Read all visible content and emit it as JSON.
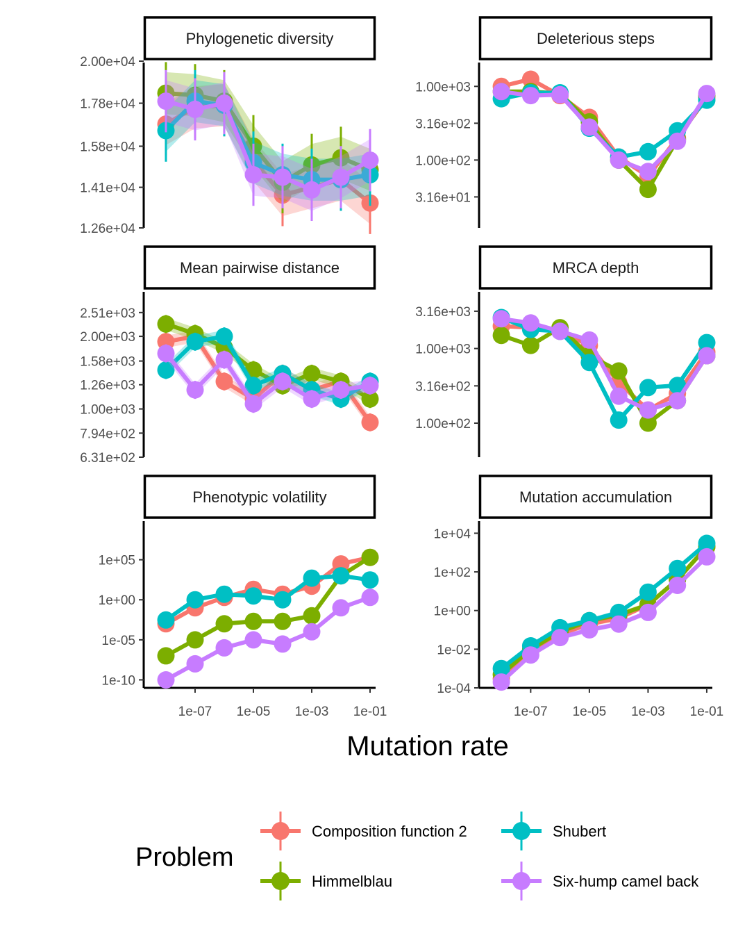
{
  "colors": {
    "Composition function 2": "#F8766D",
    "Himmelblau": "#7CAE00",
    "Shubert": "#00BFC4",
    "Six-hump camel back": "#C77CFF"
  },
  "x_axis_title": "Mutation rate",
  "legend": {
    "title": "Problem",
    "entries": [
      "Composition function 2",
      "Shubert",
      "Himmelblau",
      "Six-hump camel back"
    ]
  },
  "chart_data": [
    {
      "type": "line",
      "title": "Phylogenetic diversity",
      "xlabel": "Mutation rate",
      "x_scale": "log10",
      "y_scale": "log10",
      "x": [
        1e-08,
        1e-07,
        1e-06,
        1e-05,
        0.0001,
        0.001,
        0.01,
        0.1
      ],
      "xticks": [
        "1e-07",
        "1e-05",
        "1e-03",
        "1e-01"
      ],
      "yticks": [
        "1.26e+04",
        "1.41e+04",
        "1.58e+04",
        "1.78e+04",
        "2.00e+04"
      ],
      "ylim": [
        12600,
        20000
      ],
      "series": [
        {
          "name": "Composition function 2",
          "values": [
            16800,
            17600,
            17700,
            15200,
            13800,
            14100,
            14400,
            13500
          ]
        },
        {
          "name": "Himmelblau",
          "values": [
            18300,
            18200,
            17900,
            15800,
            14300,
            15000,
            15300,
            14800
          ]
        },
        {
          "name": "Shubert",
          "values": [
            16500,
            17900,
            17700,
            15100,
            14600,
            14400,
            14400,
            14600
          ]
        },
        {
          "name": "Six-hump camel back",
          "values": [
            17900,
            17500,
            17800,
            14600,
            14500,
            14000,
            14500,
            15200
          ]
        }
      ]
    },
    {
      "type": "line",
      "title": "Deleterious steps",
      "xlabel": "Mutation rate",
      "x_scale": "log10",
      "y_scale": "log10",
      "x": [
        1e-08,
        1e-07,
        1e-06,
        1e-05,
        0.0001,
        0.001,
        0.01,
        0.1
      ],
      "xticks": [
        "1e-07",
        "1e-05",
        "1e-03",
        "1e-01"
      ],
      "yticks": [
        "3.16e+01",
        "1.00e+02",
        "3.16e+02",
        "1.00e+03"
      ],
      "ylim": [
        12,
        2200
      ],
      "series": [
        {
          "name": "Composition function 2",
          "values": [
            1000,
            1250,
            750,
            380,
            110,
            60,
            200,
            700
          ]
        },
        {
          "name": "Himmelblau",
          "values": [
            850,
            850,
            800,
            330,
            100,
            40,
            190,
            750
          ]
        },
        {
          "name": "Shubert",
          "values": [
            680,
            820,
            820,
            270,
            110,
            130,
            250,
            650
          ]
        },
        {
          "name": "Six-hump camel back",
          "values": [
            850,
            750,
            770,
            280,
            100,
            70,
            180,
            800
          ]
        }
      ]
    },
    {
      "type": "line",
      "title": "Mean pairwise distance",
      "xlabel": "Mutation rate",
      "x_scale": "log10",
      "y_scale": "log10",
      "x": [
        1e-08,
        1e-07,
        1e-06,
        1e-05,
        0.0001,
        0.001,
        0.01,
        0.1
      ],
      "xticks": [
        "1e-07",
        "1e-05",
        "1e-03",
        "1e-01"
      ],
      "yticks": [
        "6.31e+02",
        "7.94e+02",
        "1.00e+03",
        "1.26e+03",
        "1.58e+03",
        "2.00e+03",
        "2.51e+03"
      ],
      "ylim": [
        631,
        3100
      ],
      "series": [
        {
          "name": "Composition function 2",
          "values": [
            1900,
            2000,
            1300,
            1100,
            1400,
            1200,
            1300,
            880
          ]
        },
        {
          "name": "Himmelblau",
          "values": [
            2250,
            2050,
            1800,
            1450,
            1250,
            1400,
            1300,
            1100
          ]
        },
        {
          "name": "Shubert",
          "values": [
            1450,
            1900,
            2000,
            1250,
            1400,
            1200,
            1100,
            1300
          ]
        },
        {
          "name": "Six-hump camel back",
          "values": [
            1700,
            1200,
            1600,
            1050,
            1300,
            1100,
            1200,
            1250
          ]
        }
      ]
    },
    {
      "type": "line",
      "title": "MRCA depth",
      "xlabel": "Mutation rate",
      "x_scale": "log10",
      "y_scale": "log10",
      "x": [
        1e-08,
        1e-07,
        1e-06,
        1e-05,
        0.0001,
        0.001,
        0.01,
        0.1
      ],
      "xticks": [
        "1e-07",
        "1e-05",
        "1e-03",
        "1e-01"
      ],
      "yticks": [
        "1.00e+02",
        "3.16e+02",
        "1.00e+03",
        "3.16e+03"
      ],
      "ylim": [
        35,
        6000
      ],
      "series": [
        {
          "name": "Composition function 2",
          "values": [
            2000,
            1900,
            1700,
            1100,
            350,
            150,
            250,
            900
          ]
        },
        {
          "name": "Himmelblau",
          "values": [
            1500,
            1100,
            1900,
            800,
            500,
            100,
            200,
            800
          ]
        },
        {
          "name": "Shubert",
          "values": [
            2600,
            1800,
            1700,
            650,
            110,
            300,
            320,
            1200
          ]
        },
        {
          "name": "Six-hump camel back",
          "values": [
            2500,
            2200,
            1700,
            1300,
            230,
            150,
            200,
            800
          ]
        }
      ]
    },
    {
      "type": "line",
      "title": "Phenotypic volatility",
      "xlabel": "Mutation rate",
      "x_scale": "log10",
      "y_scale": "log10",
      "x": [
        1e-08,
        1e-07,
        1e-06,
        1e-05,
        0.0001,
        0.001,
        0.01,
        0.1
      ],
      "xticks": [
        "1e-07",
        "1e-05",
        "1e-03",
        "1e-01"
      ],
      "yticks": [
        "1e-10",
        "1e-05",
        "1e+00",
        "1e+05"
      ],
      "ylim": [
        1e-11,
        10000000000.0
      ],
      "series": [
        {
          "name": "Composition function 2",
          "values": [
            0.001,
            0.1,
            2,
            20,
            5,
            50,
            30000,
            200000
          ]
        },
        {
          "name": "Himmelblau",
          "values": [
            1e-07,
            1e-05,
            0.001,
            0.002,
            0.002,
            0.01,
            1000,
            200000
          ]
        },
        {
          "name": "Shubert",
          "values": [
            0.003,
            1,
            5,
            3,
            1,
            500,
            1000,
            300
          ]
        },
        {
          "name": "Six-hump camel back",
          "values": [
            1e-10,
            1e-08,
            1e-06,
            1e-05,
            3e-06,
            0.0001,
            0.1,
            2
          ]
        }
      ]
    },
    {
      "type": "line",
      "title": "Mutation accumulation",
      "xlabel": "Mutation rate",
      "x_scale": "log10",
      "y_scale": "log10",
      "x": [
        1e-08,
        1e-07,
        1e-06,
        1e-05,
        0.0001,
        0.001,
        0.01,
        0.1
      ],
      "xticks": [
        "1e-07",
        "1e-05",
        "1e-03",
        "1e-01"
      ],
      "yticks": [
        "1e-04",
        "1e-02",
        "1e+00",
        "1e+02",
        "1e+04"
      ],
      "ylim": [
        0.0001,
        50000
      ],
      "series": [
        {
          "name": "Composition function 2",
          "values": [
            0.0003,
            0.008,
            0.06,
            0.2,
            0.4,
            2,
            40,
            2000
          ]
        },
        {
          "name": "Himmelblau",
          "values": [
            0.0005,
            0.01,
            0.08,
            0.3,
            0.6,
            2,
            40,
            2000
          ]
        },
        {
          "name": "Shubert",
          "values": [
            0.001,
            0.015,
            0.13,
            0.3,
            0.8,
            9,
            150,
            3000
          ]
        },
        {
          "name": "Six-hump camel back",
          "values": [
            0.0002,
            0.005,
            0.04,
            0.1,
            0.2,
            0.8,
            20,
            600
          ]
        }
      ]
    }
  ]
}
